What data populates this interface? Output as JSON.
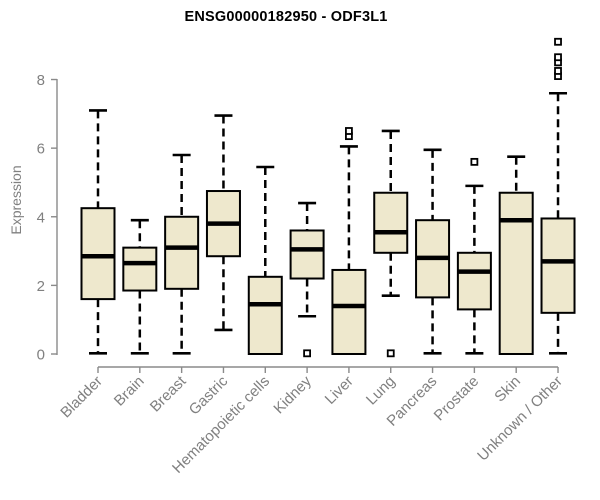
{
  "chart_data": {
    "type": "box",
    "title": "ENSG00000182950 - ODF3L1",
    "ylabel": "Expression",
    "xlabel": "",
    "ylim": [
      0,
      8
    ],
    "yticks": [
      0,
      2,
      4,
      6,
      8
    ],
    "grid": false,
    "legend": "none",
    "categories": [
      "Bladder",
      "Brain",
      "Breast",
      "Gastric",
      "Hematopoietic cells",
      "Kidney",
      "Liver",
      "Lung",
      "Pancreas",
      "Prostate",
      "Skin",
      "Unknown / Other"
    ],
    "series": [
      {
        "name": "Bladder",
        "whisker_low": 0.02,
        "q1": 1.6,
        "median": 2.85,
        "q3": 4.25,
        "whisker_high": 7.1,
        "outliers": []
      },
      {
        "name": "Brain",
        "whisker_low": 0.02,
        "q1": 1.85,
        "median": 2.65,
        "q3": 3.1,
        "whisker_high": 3.9,
        "outliers": []
      },
      {
        "name": "Breast",
        "whisker_low": 0.02,
        "q1": 1.9,
        "median": 3.1,
        "q3": 4.0,
        "whisker_high": 5.8,
        "outliers": []
      },
      {
        "name": "Gastric",
        "whisker_low": 0.7,
        "q1": 2.85,
        "median": 3.8,
        "q3": 4.75,
        "whisker_high": 6.95,
        "outliers": []
      },
      {
        "name": "Hematopoietic cells",
        "whisker_low": 0.0,
        "q1": 0.0,
        "median": 1.45,
        "q3": 2.25,
        "whisker_high": 5.45,
        "outliers": []
      },
      {
        "name": "Kidney",
        "whisker_low": 1.1,
        "q1": 2.2,
        "median": 3.05,
        "q3": 3.6,
        "whisker_high": 4.4,
        "outliers": [
          0.02
        ]
      },
      {
        "name": "Liver",
        "whisker_low": 0.0,
        "q1": 0.0,
        "median": 1.4,
        "q3": 2.45,
        "whisker_high": 6.05,
        "outliers": [
          6.35,
          6.5
        ]
      },
      {
        "name": "Lung",
        "whisker_low": 1.7,
        "q1": 2.95,
        "median": 3.55,
        "q3": 4.7,
        "whisker_high": 6.5,
        "outliers": [
          0.02
        ]
      },
      {
        "name": "Pancreas",
        "whisker_low": 0.02,
        "q1": 1.65,
        "median": 2.8,
        "q3": 3.9,
        "whisker_high": 5.95,
        "outliers": []
      },
      {
        "name": "Prostate",
        "whisker_low": 0.02,
        "q1": 1.3,
        "median": 2.4,
        "q3": 2.95,
        "whisker_high": 4.9,
        "outliers": [
          5.6
        ]
      },
      {
        "name": "Skin",
        "whisker_low": 0.0,
        "q1": 0.0,
        "median": 3.9,
        "q3": 4.7,
        "whisker_high": 5.75,
        "outliers": []
      },
      {
        "name": "Unknown / Other",
        "whisker_low": 0.02,
        "q1": 1.2,
        "median": 2.7,
        "q3": 3.95,
        "whisker_high": 7.6,
        "outliers": [
          8.1,
          8.25,
          8.5,
          8.65,
          9.1
        ]
      }
    ],
    "colors": {
      "box_fill": "#EEE8CD",
      "line": "#000000",
      "axis": "#8A8A8A",
      "tick_text": "#808080",
      "title_text": "#000000",
      "outlier_fill": "#FFFFFF"
    }
  }
}
